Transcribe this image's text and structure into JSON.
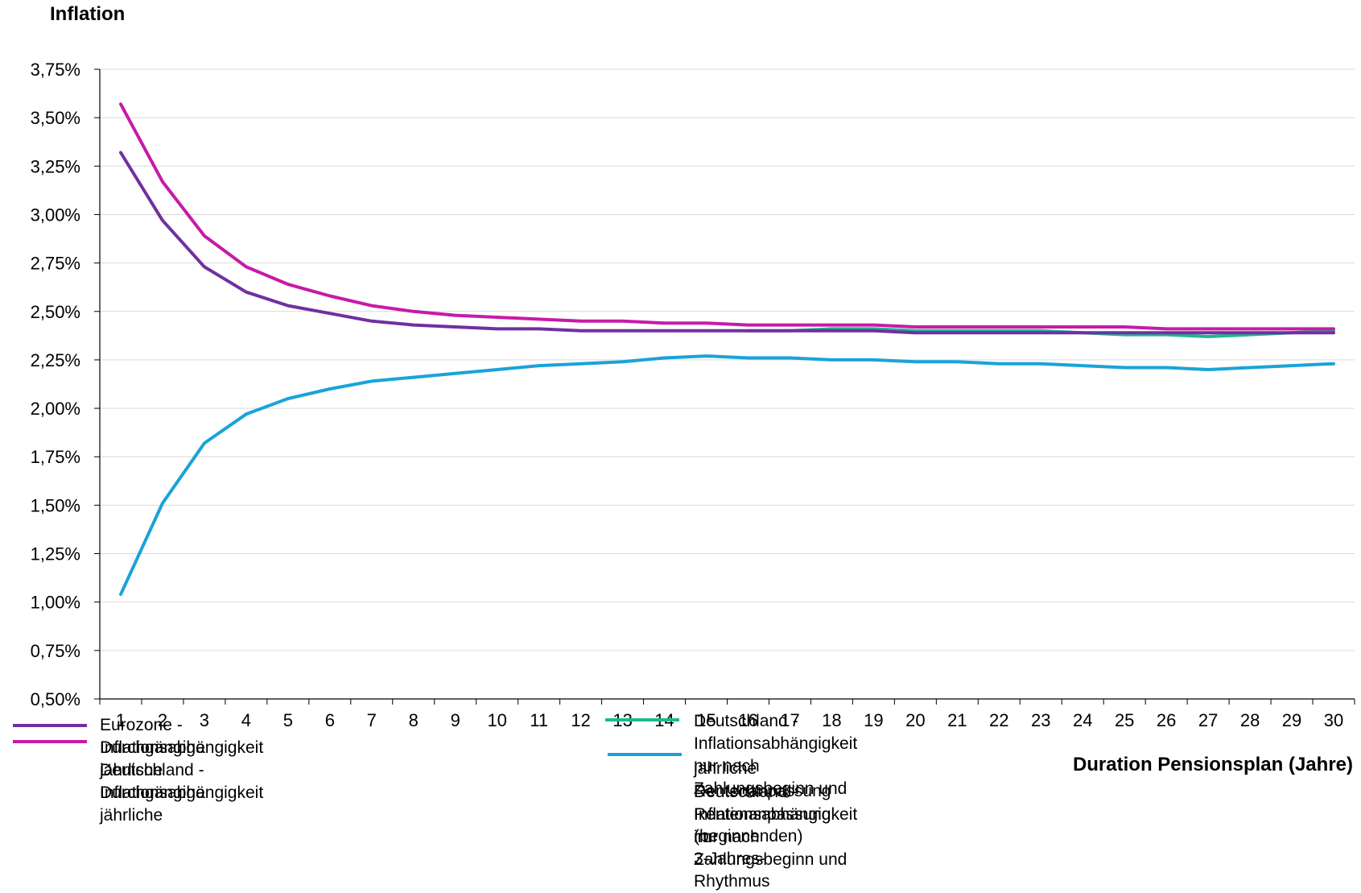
{
  "chart_data": {
    "type": "line",
    "ylabel": "Inflation",
    "xlabel": "Duration Pensionsplan (Jahre)",
    "ylim": [
      0.5,
      3.75
    ],
    "yticks": [
      "0,50%",
      "0,75%",
      "1,00%",
      "1,25%",
      "1,50%",
      "1,75%",
      "2,00%",
      "2,25%",
      "2,50%",
      "2,75%",
      "3,00%",
      "3,25%",
      "3,50%",
      "3,75%"
    ],
    "yticks_values": [
      0.5,
      0.75,
      1.0,
      1.25,
      1.5,
      1.75,
      2.0,
      2.25,
      2.5,
      2.75,
      3.0,
      3.25,
      3.5,
      3.75
    ],
    "categories": [
      "1",
      "2",
      "3",
      "4",
      "5",
      "6",
      "7",
      "8",
      "9",
      "10",
      "11",
      "12",
      "13",
      "14",
      "15",
      "16",
      "17",
      "18",
      "19",
      "20",
      "21",
      "22",
      "23",
      "24",
      "25",
      "26",
      "27",
      "28",
      "29",
      "30"
    ],
    "grid": "horizontal",
    "series": [
      {
        "name": "Eurozone - Durchgängige jährliche Inflationsabhängigkeit",
        "legend_lines": [
          "Eurozone - Durchgängige jährliche",
          "Inflationsabhängigkeit"
        ],
        "color": "#7030a0",
        "values": [
          3.32,
          2.97,
          2.73,
          2.6,
          2.53,
          2.49,
          2.45,
          2.43,
          2.42,
          2.41,
          2.41,
          2.4,
          2.4,
          2.4,
          2.4,
          2.4,
          2.4,
          2.4,
          2.4,
          2.39,
          2.39,
          2.39,
          2.39,
          2.39,
          2.39,
          2.39,
          2.39,
          2.39,
          2.39,
          2.39
        ]
      },
      {
        "name": "Deutschland - Durchgängige jährliche Inflationsabhängigkeit",
        "legend_lines": [
          "Deutschland - Durchgängige jährliche",
          "Inflationsabhängigkeit"
        ],
        "color": "#c71aa8",
        "values": [
          3.57,
          3.17,
          2.89,
          2.73,
          2.64,
          2.58,
          2.53,
          2.5,
          2.48,
          2.47,
          2.46,
          2.45,
          2.45,
          2.44,
          2.44,
          2.43,
          2.43,
          2.43,
          2.43,
          2.42,
          2.42,
          2.42,
          2.42,
          2.42,
          2.42,
          2.41,
          2.41,
          2.41,
          2.41,
          2.41
        ]
      },
      {
        "name": "Deutschland - Inflationsabhängigkeit nur nach Zahlungsbeginn und jährliche Rentenanpassung",
        "legend_lines": [
          "Deutschland - Inflationsabhängigkeit nur nach Zahlungsbeginn und",
          "jährliche Rentenanpassung"
        ],
        "color": "#1db891",
        "values": [
          null,
          null,
          null,
          null,
          null,
          null,
          null,
          null,
          null,
          null,
          null,
          null,
          null,
          null,
          null,
          2.4,
          2.4,
          2.41,
          2.41,
          2.4,
          2.4,
          2.4,
          2.4,
          2.39,
          2.38,
          2.38,
          2.37,
          2.38,
          2.39,
          2.4
        ]
      },
      {
        "name": "Deutschland - Inflationsabhängigkeit nur nach Zahlungsbeginn und Rentenanpassung im (beginnenden) 3-Jahres-Rhythmus",
        "legend_lines": [
          "Deutschland - Inflationsabhängigkeit nur nach Zahlungsbeginn und",
          "Rentenanpassung im",
          "(beginnenden) 3-Jahres-Rhythmus"
        ],
        "color": "#1aa3d9",
        "values": [
          1.04,
          1.51,
          1.82,
          1.97,
          2.05,
          2.1,
          2.14,
          2.16,
          2.18,
          2.2,
          2.22,
          2.23,
          2.24,
          2.26,
          2.27,
          2.26,
          2.26,
          2.25,
          2.25,
          2.24,
          2.24,
          2.23,
          2.23,
          2.22,
          2.21,
          2.21,
          2.2,
          2.21,
          2.22,
          2.23
        ]
      }
    ]
  }
}
